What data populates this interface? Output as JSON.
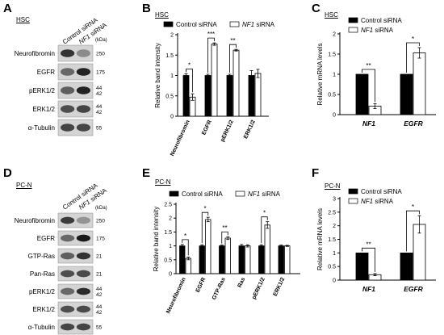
{
  "panels": {
    "A": {
      "letter": "A",
      "context": "HSC",
      "lanes": [
        "Control siRNA",
        "NF1 siRNA"
      ],
      "kda_label": "(kDa)",
      "bands": [
        {
          "name": "Neurofibromin",
          "kda": [
            "250"
          ],
          "ctrl": 0.85,
          "kd": 0.35
        },
        {
          "name": "EGFR",
          "kda": [
            "175"
          ],
          "ctrl": 0.55,
          "kd": 0.95
        },
        {
          "name": "pERK1/2",
          "kda": [
            "44",
            "42"
          ],
          "ctrl": 0.6,
          "kd": 0.95
        },
        {
          "name": "ERK1/2",
          "kda": [
            "44",
            "42"
          ],
          "ctrl": 0.7,
          "kd": 0.75
        },
        {
          "name": "α-Tubulin",
          "kda": [
            "55"
          ],
          "ctrl": 0.75,
          "kd": 0.75
        }
      ]
    },
    "D": {
      "letter": "D",
      "context": "PC-N",
      "lanes": [
        "Control siRNA",
        "NF1 siRNA"
      ],
      "kda_label": "(kDa)",
      "bands": [
        {
          "name": "Neurofibromin",
          "kda": [
            "250"
          ],
          "ctrl": 0.8,
          "kd": 0.3
        },
        {
          "name": "EGFR",
          "kda": [
            "175"
          ],
          "ctrl": 0.55,
          "kd": 1.0
        },
        {
          "name": "GTP-Ras",
          "kda": [
            "21"
          ],
          "ctrl": 0.6,
          "kd": 0.85
        },
        {
          "name": "Pan-Ras",
          "kda": [
            "21"
          ],
          "ctrl": 0.7,
          "kd": 0.72
        },
        {
          "name": "pERK1/2",
          "kda": [
            "44",
            "42"
          ],
          "ctrl": 0.55,
          "kd": 0.9
        },
        {
          "name": "ERK1/2",
          "kda": [
            "44",
            "42"
          ],
          "ctrl": 0.7,
          "kd": 0.72
        },
        {
          "name": "α-Tubulin",
          "kda": [
            "55"
          ],
          "ctrl": 0.75,
          "kd": 0.75
        }
      ]
    }
  },
  "chart_data": [
    {
      "id": "B",
      "letter": "B",
      "context": "HSC",
      "type": "bar",
      "ylabel": "Relative band intensity",
      "ylim": [
        0,
        2
      ],
      "yticks": [
        "0",
        "0.5",
        "1",
        "1.5",
        "2"
      ],
      "grid": false,
      "legend_position": "top",
      "series": [
        {
          "name": "Control siRNA",
          "color": "#000000",
          "values": [
            1.0,
            1.0,
            1.0,
            1.0
          ],
          "err": [
            0.04,
            0.03,
            0.03,
            0.12
          ]
        },
        {
          "name": "NF1 siRNA",
          "color": "#ffffff",
          "values": [
            0.47,
            1.77,
            1.62,
            1.05
          ],
          "err": [
            0.08,
            0.03,
            0.02,
            0.1
          ]
        }
      ],
      "categories": [
        "Neurofibromin",
        "EGFR",
        "pERK1/2",
        "ERK1/2"
      ],
      "significance": [
        "*",
        "***",
        "**",
        ""
      ]
    },
    {
      "id": "C",
      "letter": "C",
      "context": "HSC",
      "type": "bar",
      "ylabel": "Relative mRNA levels",
      "ylim": [
        0,
        2
      ],
      "yticks": [
        "0",
        "0.5",
        "1",
        "1.5",
        "2"
      ],
      "grid": false,
      "legend_position": "top-left",
      "series": [
        {
          "name": "Control siRNA",
          "color": "#000000",
          "values": [
            1.0,
            1.0
          ],
          "err": [
            0,
            0
          ]
        },
        {
          "name": "NF1 siRNA",
          "color": "#ffffff",
          "values": [
            0.21,
            1.53
          ],
          "err": [
            0.06,
            0.13
          ]
        }
      ],
      "categories": [
        "NF1",
        "EGFR"
      ],
      "significance": [
        "**",
        "*"
      ]
    },
    {
      "id": "E",
      "letter": "E",
      "context": "PC-N",
      "type": "bar",
      "ylabel": "Relative band intensity",
      "ylim": [
        0,
        2.5
      ],
      "yticks": [
        "0",
        "0.5",
        "1",
        "1.5",
        "2",
        "2.5"
      ],
      "grid": false,
      "legend_position": "top",
      "series": [
        {
          "name": "Control siRNA",
          "color": "#000000",
          "values": [
            1.0,
            1.0,
            1.0,
            1.0,
            1.0,
            1.0
          ],
          "err": [
            0.05,
            0.04,
            0.03,
            0.05,
            0.04,
            0.03
          ]
        },
        {
          "name": "NF1 siRNA",
          "color": "#ffffff",
          "values": [
            0.55,
            1.95,
            1.28,
            1.0,
            1.75,
            1.0
          ],
          "err": [
            0.05,
            0.08,
            0.05,
            0.04,
            0.12,
            0.02
          ]
        }
      ],
      "categories": [
        "Neurofibromin",
        "EGFR",
        "GTP-Ras",
        "Ras",
        "pERK1/2",
        "ERK1/2"
      ],
      "significance": [
        "*",
        "*",
        "**",
        "",
        "*",
        ""
      ]
    },
    {
      "id": "F",
      "letter": "F",
      "context": "PC-N",
      "type": "bar",
      "ylabel": "Relative mRNA levels",
      "ylim": [
        0,
        3
      ],
      "yticks": [
        "0",
        "0.5",
        "1",
        "1.5",
        "2",
        "2.5",
        "3"
      ],
      "grid": false,
      "legend_position": "top-left",
      "series": [
        {
          "name": "Control siRNA",
          "color": "#000000",
          "values": [
            1.0,
            1.0
          ],
          "err": [
            0,
            0
          ]
        },
        {
          "name": "NF1 siRNA",
          "color": "#ffffff",
          "values": [
            0.2,
            2.05
          ],
          "err": [
            0.04,
            0.32
          ]
        }
      ],
      "categories": [
        "NF1",
        "EGFR"
      ],
      "significance": [
        "**",
        "*"
      ]
    }
  ]
}
